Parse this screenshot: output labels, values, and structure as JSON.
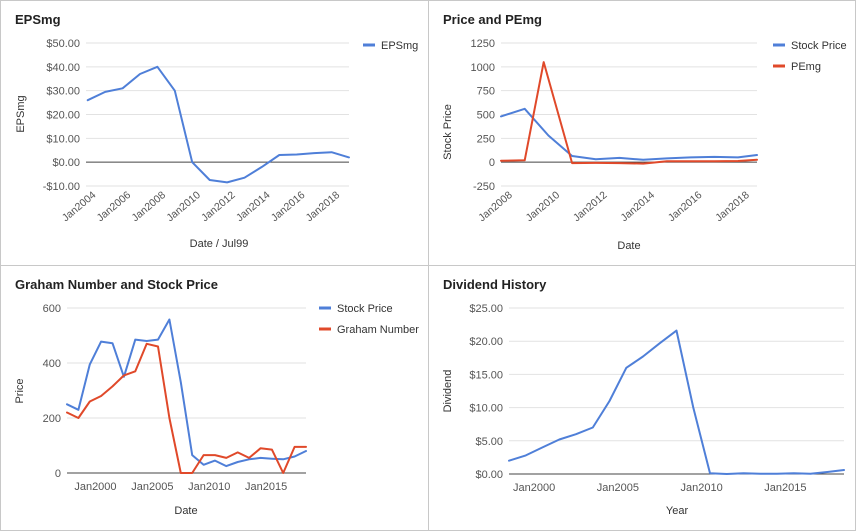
{
  "colors": {
    "blue": "#4f7fd8",
    "red": "#e0492a",
    "grid": "#e2e2e2",
    "zero": "#444444",
    "text": "#555555"
  },
  "chart_data": [
    {
      "title": "EPSmg",
      "type": "line",
      "xlabel": "Date / Jul99",
      "ylabel": "EPSmg",
      "legend": "top-right",
      "xlim": [
        2003.4,
        2018.5
      ],
      "ylim": [
        -10,
        50
      ],
      "yticks": [
        -10,
        0,
        10,
        20,
        30,
        40,
        50
      ],
      "ytick_labels": [
        "-$10.00",
        "$0.00",
        "$10.00",
        "$20.00",
        "$30.00",
        "$40.00",
        "$50.00"
      ],
      "xticks": [
        2004,
        2006,
        2008,
        2010,
        2012,
        2014,
        2016,
        2018
      ],
      "xtick_labels": [
        "Jan2004",
        "Jan2006",
        "Jan2008",
        "Jan2010",
        "Jan2012",
        "Jan2014",
        "Jan2016",
        "Jan2018"
      ],
      "x_tick_rotate": true,
      "series": [
        {
          "name": "EPSmg",
          "color": "#4f7fd8",
          "x": [
            2003.5,
            2004.5,
            2005.5,
            2006.5,
            2007.5,
            2008.5,
            2009.5,
            2010.5,
            2011.5,
            2012.5,
            2013.5,
            2014.5,
            2015.5,
            2016.5,
            2017.5,
            2018.5
          ],
          "y": [
            26,
            29.5,
            31,
            37,
            40,
            30,
            0,
            -7.5,
            -8.5,
            -6.5,
            -2,
            3,
            3.2,
            3.8,
            4.2,
            2
          ]
        }
      ]
    },
    {
      "title": "Price and PEmg",
      "type": "line",
      "xlabel": "Date",
      "ylabel": "Stock Price",
      "legend": "top-right",
      "xlim": [
        2007.5,
        2018.3
      ],
      "ylim": [
        -250,
        1250
      ],
      "yticks": [
        -250,
        0,
        250,
        500,
        750,
        1000,
        1250
      ],
      "ytick_labels": [
        "-250",
        "0",
        "250",
        "500",
        "750",
        "1000",
        "1250"
      ],
      "xticks": [
        2008,
        2010,
        2012,
        2014,
        2016,
        2018
      ],
      "xtick_labels": [
        "Jan2008",
        "Jan2010",
        "Jan2012",
        "Jan2014",
        "Jan2016",
        "Jan2018"
      ],
      "x_tick_rotate": true,
      "series": [
        {
          "name": "Stock Price",
          "color": "#4f7fd8",
          "x": [
            2007.5,
            2008.5,
            2009.5,
            2010.5,
            2011.5,
            2012.5,
            2013.5,
            2014.5,
            2015.5,
            2016.5,
            2017.5,
            2018.3
          ],
          "y": [
            480,
            560,
            280,
            65,
            30,
            45,
            25,
            40,
            50,
            55,
            50,
            75
          ]
        },
        {
          "name": "PEmg",
          "color": "#e0492a",
          "x": [
            2007.5,
            2008.5,
            2009.3,
            2010.5,
            2011.5,
            2012.5,
            2013.5,
            2014.5,
            2015.5,
            2016.5,
            2017.5,
            2018.3
          ],
          "y": [
            15,
            20,
            1050,
            -10,
            -8,
            -10,
            -15,
            10,
            10,
            10,
            12,
            25
          ]
        }
      ]
    },
    {
      "title": "Graham Number and Stock Price",
      "type": "line",
      "xlabel": "Date",
      "ylabel": "Price",
      "legend": "top-right",
      "xlim": [
        1997.5,
        2018.5
      ],
      "ylim": [
        0,
        600
      ],
      "yticks": [
        0,
        200,
        400,
        600
      ],
      "ytick_labels": [
        "0",
        "200",
        "400",
        "600"
      ],
      "xticks": [
        2000,
        2005,
        2010,
        2015
      ],
      "xtick_labels": [
        "Jan2000",
        "Jan2005",
        "Jan2010",
        "Jan2015"
      ],
      "x_tick_rotate": false,
      "series": [
        {
          "name": "Stock Price",
          "color": "#4f7fd8",
          "x": [
            1997.5,
            1998.5,
            1999.5,
            2000.5,
            2001.5,
            2002.5,
            2003.5,
            2004.5,
            2005.5,
            2006.5,
            2007.5,
            2008.5,
            2009.5,
            2010.5,
            2011.5,
            2012.5,
            2013.5,
            2014.5,
            2015.5,
            2016.5,
            2017.5,
            2018.5
          ],
          "y": [
            250,
            230,
            395,
            478,
            472,
            350,
            485,
            480,
            485,
            558,
            330,
            65,
            30,
            45,
            25,
            40,
            50,
            55,
            52,
            50,
            60,
            80
          ]
        },
        {
          "name": "Graham Number",
          "color": "#e0492a",
          "x": [
            1997.5,
            1998.5,
            1999.5,
            2000.5,
            2001.5,
            2002.5,
            2003.5,
            2004.5,
            2005.5,
            2006.5,
            2007.5,
            2008.5,
            2009.5,
            2010.5,
            2011.5,
            2012.5,
            2013.5,
            2014.5,
            2015.5,
            2016.5,
            2017.5,
            2018.5
          ],
          "y": [
            220,
            200,
            260,
            280,
            315,
            355,
            370,
            470,
            460,
            200,
            0,
            0,
            65,
            65,
            55,
            75,
            55,
            90,
            85,
            0,
            95,
            95
          ]
        }
      ]
    },
    {
      "title": "Dividend History",
      "type": "line",
      "xlabel": "Year",
      "ylabel": "Dividend",
      "legend": "none",
      "xlim": [
        1998.5,
        2018.5
      ],
      "ylim": [
        0,
        25
      ],
      "yticks": [
        0,
        5,
        10,
        15,
        20,
        25
      ],
      "ytick_labels": [
        "$0.00",
        "$5.00",
        "$10.00",
        "$15.00",
        "$20.00",
        "$25.00"
      ],
      "xticks": [
        2000,
        2005,
        2010,
        2015
      ],
      "xtick_labels": [
        "Jan2000",
        "Jan2005",
        "Jan2010",
        "Jan2015"
      ],
      "x_tick_rotate": false,
      "series": [
        {
          "name": "",
          "color": "#4f7fd8",
          "x": [
            1998.5,
            1999.5,
            2000.5,
            2001.5,
            2002.5,
            2003.5,
            2004.5,
            2005.5,
            2006.5,
            2007.5,
            2008.5,
            2009.5,
            2010.5,
            2011.5,
            2012.5,
            2013.5,
            2014.5,
            2015.5,
            2016.5,
            2017.5,
            2018.5
          ],
          "y": [
            2.0,
            2.8,
            4.0,
            5.2,
            6.0,
            7.0,
            11.0,
            16.0,
            17.7,
            19.7,
            21.6,
            10.0,
            0.1,
            0.0,
            0.1,
            0.05,
            0.05,
            0.1,
            0.05,
            0.3,
            0.6
          ]
        }
      ]
    }
  ]
}
